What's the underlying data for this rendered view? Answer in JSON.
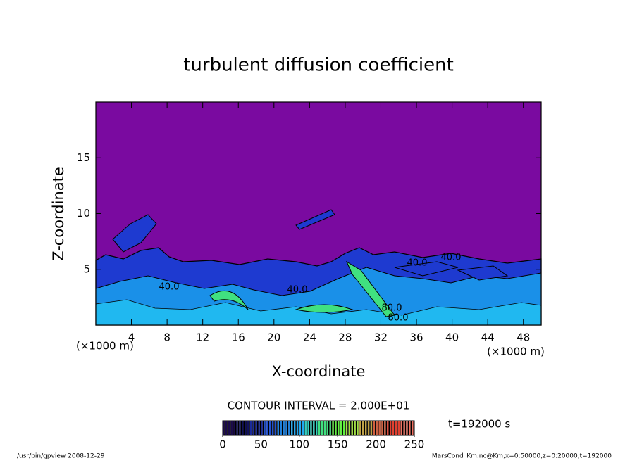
{
  "chart_data": {
    "type": "contour",
    "title": "turbulent diffusion coefficient",
    "x_label": "X-coordinate",
    "y_label": "Z-coordinate",
    "x_unit": "(×1000 m)",
    "y_unit": "(×1000 m)",
    "xlim": [
      0,
      50
    ],
    "xticks": [
      4,
      8,
      12,
      16,
      20,
      24,
      28,
      32,
      36,
      40,
      44,
      48
    ],
    "ylim": [
      0,
      20
    ],
    "yticks": [
      5,
      10,
      15
    ],
    "contour_interval": "CONTOUR INTERVAL = 2.000E+01",
    "contour_labels": [
      "40.0",
      "40.0",
      "40.0",
      "40.0",
      "80.0",
      "80.0"
    ],
    "time_label": "t=192000 s",
    "colorbar": {
      "lim": [
        0,
        250
      ],
      "ticks": [
        0,
        50,
        100,
        150,
        200,
        250
      ],
      "colors": [
        "#1a0a4a",
        "#10105e",
        "#1a2a9a",
        "#2050d0",
        "#1a80e0",
        "#20a8f0",
        "#30d0c0",
        "#40e080",
        "#60f040",
        "#a0e040",
        "#c0a040",
        "#d06040",
        "#e04030",
        "#f07060"
      ]
    },
    "footer_left": "/usr/bin/gpview  2008-12-29",
    "footer_right": "MarsCond_Km.nc@Km,x=0:50000,z=0:20000,t=192000"
  }
}
